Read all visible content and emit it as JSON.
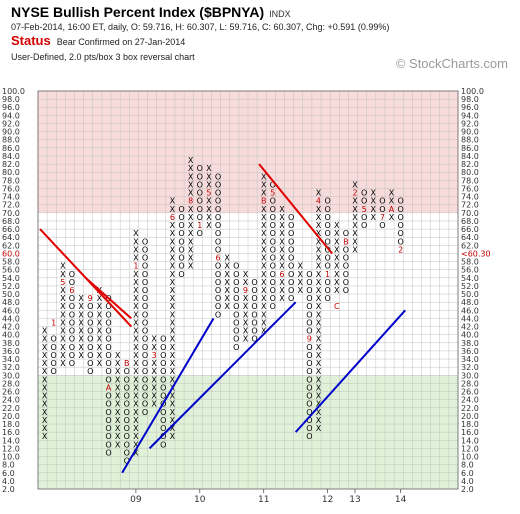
{
  "header": {
    "title": "NYSE Bullish Percent Index ($BPNYA)",
    "exchange": "INDX",
    "ohlc": "07-Feb-2014, 16:00 ET, daily, O: 59.716, H: 60.307, L: 59.716, C: 60.307, Chg: +0.591 (0.99%)",
    "status_label": "Status",
    "status_text": "Bear Confirmed on 27-Jan-2014",
    "chart_info": "User-Defined, 2.0 pts/box 3 box reversal chart",
    "brand": "© StockCharts.com"
  },
  "colors": {
    "overbought_zone": "#f8dcdc",
    "oversold_zone": "#dff2d8",
    "grid": "#c0c0c0",
    "trend_down": "#e00000",
    "trend_up": "#0000cc",
    "month_marker": "#c00000",
    "price_label": "#c00000"
  },
  "chart_data": {
    "type": "point-and-figure",
    "box_size": 2.0,
    "reversal": 3,
    "y_range": [
      2,
      100
    ],
    "y_ticks": [
      "100.0",
      "98.0",
      "96.0",
      "94.0",
      "92.0",
      "90.0",
      "88.0",
      "86.0",
      "84.0",
      "82.0",
      "80.0",
      "78.0",
      "76.0",
      "74.0",
      "72.0",
      "70.0",
      "68.0",
      "66.0",
      "64.0",
      "62.0",
      "60.0",
      "58.0",
      "56.0",
      "54.0",
      "52.0",
      "50.0",
      "48.0",
      "46.0",
      "44.0",
      "42.0",
      "40.0",
      "38.0",
      "36.0",
      "34.0",
      "32.0",
      "30.0",
      "28.0",
      "26.0",
      "24.0",
      "22.0",
      "20.0",
      "18.0",
      "16.0",
      "14.0",
      "12.0",
      "10.0",
      "8.0",
      "6.0",
      "4.0",
      "2.0"
    ],
    "current_value_left": "60.0",
    "current_value_right": "<60.30",
    "overbought_level": 70,
    "oversold_level": 30,
    "x_labels": [
      {
        "column": 10,
        "label": "09"
      },
      {
        "column": 17,
        "label": "10"
      },
      {
        "column": 24,
        "label": "11"
      },
      {
        "column": 31,
        "label": "12"
      },
      {
        "column": 34,
        "label": "13"
      },
      {
        "column": 39,
        "label": "14"
      }
    ],
    "columns": [
      {
        "type": "X",
        "low": 14,
        "high": 42
      },
      {
        "type": "O",
        "low": 30,
        "high": 40
      },
      {
        "type": "X",
        "low": 32,
        "high": 58
      },
      {
        "type": "O",
        "low": 32,
        "high": 56
      },
      {
        "type": "X",
        "low": 34,
        "high": 50
      },
      {
        "type": "O",
        "low": 30,
        "high": 48
      },
      {
        "type": "X",
        "low": 32,
        "high": 52
      },
      {
        "type": "O",
        "low": 10,
        "high": 50
      },
      {
        "type": "X",
        "low": 12,
        "high": 36
      },
      {
        "type": "O",
        "low": 8,
        "high": 34
      },
      {
        "type": "X",
        "low": 10,
        "high": 66
      },
      {
        "type": "O",
        "low": 20,
        "high": 64
      },
      {
        "type": "X",
        "low": 22,
        "high": 40
      },
      {
        "type": "O",
        "low": 12,
        "high": 40
      },
      {
        "type": "X",
        "low": 14,
        "high": 74
      },
      {
        "type": "O",
        "low": 54,
        "high": 72
      },
      {
        "type": "X",
        "low": 56,
        "high": 84
      },
      {
        "type": "O",
        "low": 64,
        "high": 82
      },
      {
        "type": "X",
        "low": 66,
        "high": 82
      },
      {
        "type": "O",
        "low": 44,
        "high": 80
      },
      {
        "type": "X",
        "low": 46,
        "high": 60
      },
      {
        "type": "O",
        "low": 36,
        "high": 58
      },
      {
        "type": "X",
        "low": 38,
        "high": 56
      },
      {
        "type": "O",
        "low": 38,
        "high": 54
      },
      {
        "type": "X",
        "low": 40,
        "high": 80
      },
      {
        "type": "O",
        "low": 46,
        "high": 78
      },
      {
        "type": "X",
        "low": 48,
        "high": 72
      },
      {
        "type": "O",
        "low": 48,
        "high": 70
      },
      {
        "type": "X",
        "low": 50,
        "high": 58
      },
      {
        "type": "O",
        "low": 14,
        "high": 56
      },
      {
        "type": "X",
        "low": 16,
        "high": 76
      },
      {
        "type": "O",
        "low": 48,
        "high": 74
      },
      {
        "type": "X",
        "low": 50,
        "high": 68
      },
      {
        "type": "O",
        "low": 50,
        "high": 66
      },
      {
        "type": "X",
        "low": 60,
        "high": 78
      },
      {
        "type": "O",
        "low": 66,
        "high": 76
      },
      {
        "type": "X",
        "low": 68,
        "high": 76
      },
      {
        "type": "O",
        "low": 66,
        "high": 74
      },
      {
        "type": "X",
        "low": 68,
        "high": 76
      },
      {
        "type": "O",
        "low": 60,
        "high": 74
      }
    ],
    "month_markers": [
      {
        "column": 1,
        "value": 44,
        "label": "1"
      },
      {
        "column": 2,
        "value": 54,
        "label": "5"
      },
      {
        "column": 3,
        "value": 52,
        "label": "6"
      },
      {
        "column": 5,
        "value": 50,
        "label": "9"
      },
      {
        "column": 7,
        "value": 28,
        "label": "A"
      },
      {
        "column": 9,
        "value": 34,
        "label": "B"
      },
      {
        "column": 10,
        "value": 58,
        "label": "1"
      },
      {
        "column": 12,
        "value": 36,
        "label": "3"
      },
      {
        "column": 14,
        "value": 70,
        "label": "6"
      },
      {
        "column": 16,
        "value": 74,
        "label": "8"
      },
      {
        "column": 17,
        "value": 68,
        "label": "1"
      },
      {
        "column": 18,
        "value": 76,
        "label": "5"
      },
      {
        "column": 19,
        "value": 60,
        "label": "6"
      },
      {
        "column": 22,
        "value": 52,
        "label": "9"
      },
      {
        "column": 24,
        "value": 74,
        "label": "B"
      },
      {
        "column": 25,
        "value": 76,
        "label": "5"
      },
      {
        "column": 26,
        "value": 56,
        "label": "6"
      },
      {
        "column": 29,
        "value": 40,
        "label": "9"
      },
      {
        "column": 30,
        "value": 74,
        "label": "4"
      },
      {
        "column": 31,
        "value": 56,
        "label": "1"
      },
      {
        "column": 32,
        "value": 48,
        "label": "C"
      },
      {
        "column": 33,
        "value": 64,
        "label": "B"
      },
      {
        "column": 34,
        "value": 76,
        "label": "2"
      },
      {
        "column": 35,
        "value": 72,
        "label": "5"
      },
      {
        "column": 37,
        "value": 70,
        "label": "7"
      },
      {
        "column": 38,
        "value": 72,
        "label": "A"
      },
      {
        "column": 39,
        "value": 62,
        "label": "2"
      }
    ],
    "trendlines": [
      {
        "kind": "bearish resistance",
        "from": {
          "column": 0,
          "value": 66
        },
        "to": {
          "column": 9,
          "value": 42
        }
      },
      {
        "kind": "bearish resistance",
        "from": {
          "column": 5,
          "value": 54
        },
        "to": {
          "column": 9,
          "value": 44
        }
      },
      {
        "kind": "bullish support",
        "from": {
          "column": 9,
          "value": 6
        },
        "to": {
          "column": 18,
          "value": 44
        }
      },
      {
        "kind": "bullish support",
        "from": {
          "column": 12,
          "value": 12
        },
        "to": {
          "column": 27,
          "value": 48
        }
      },
      {
        "kind": "bearish resistance",
        "from": {
          "column": 24,
          "value": 82
        },
        "to": {
          "column": 31,
          "value": 60
        }
      },
      {
        "kind": "bullish support",
        "from": {
          "column": 28,
          "value": 16
        },
        "to": {
          "column": 39,
          "value": 46
        }
      }
    ]
  }
}
